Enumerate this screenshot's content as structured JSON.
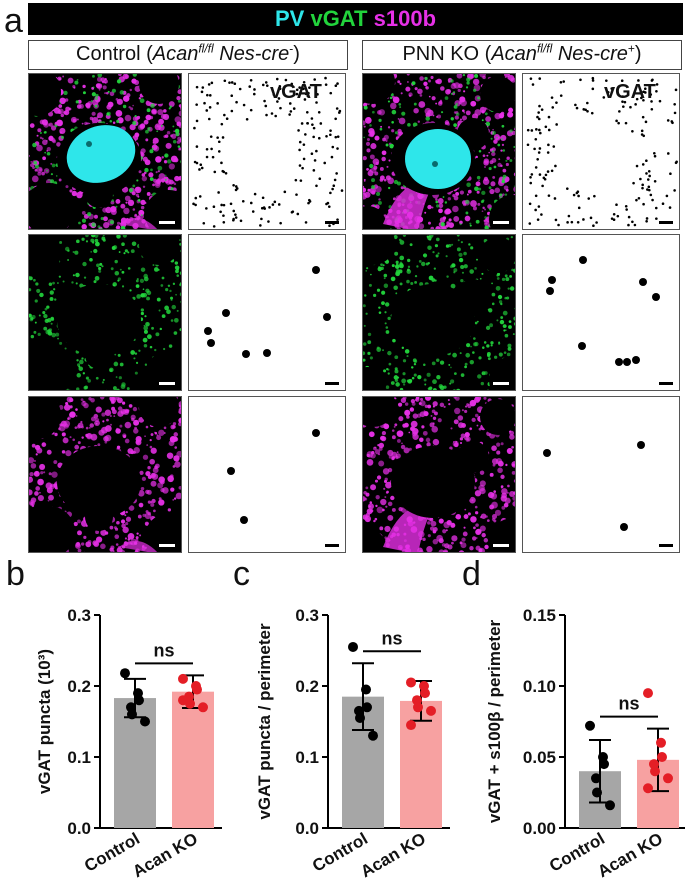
{
  "figure": {
    "panel_a_letter": "a",
    "banner": {
      "pv": "PV",
      "vgat": "vGAT",
      "s100b": "s100b"
    },
    "control_header": {
      "prefix": "Control (",
      "gene": "Acan",
      "gene_sup": "fl/fl",
      "driver": " Nes-cre",
      "driver_sup": "-",
      "suffix": ")"
    },
    "ko_header": {
      "prefix": "PNN KO (",
      "gene": "Acan",
      "gene_sup": "fl/fl",
      "driver": " Nes-cre",
      "driver_sup": "+",
      "suffix": ")"
    },
    "vgat_tile_label": "vGAT",
    "colors": {
      "cyan": "#2ee6ea",
      "green": "#22d43c",
      "magenta": "#e630e6",
      "control_bar": "#a6a6a6",
      "ko_bar": "#f7a1a1",
      "ko_dot": "#e41e26"
    }
  },
  "chart_data": [
    {
      "type": "bar",
      "panel_letter": "b",
      "categories": [
        "Control",
        "Acan KO"
      ],
      "ylabel": "vGAT puncta (10³)",
      "ylim": [
        0,
        0.3
      ],
      "yticks": [
        "0.0",
        "0.1",
        "0.2",
        "0.3"
      ],
      "ytick_values": [
        0,
        0.1,
        0.2,
        0.3
      ],
      "means": [
        0.183,
        0.192
      ],
      "sd": [
        0.027,
        0.023
      ],
      "points": [
        [
          0.218,
          0.19,
          0.18,
          0.17,
          0.16,
          0.15
        ],
        [
          0.21,
          0.2,
          0.195,
          0.185,
          0.175,
          0.17,
          0.18
        ]
      ],
      "significance": "ns"
    },
    {
      "type": "bar",
      "panel_letter": "c",
      "categories": [
        "Control",
        "Acan KO"
      ],
      "ylabel": "vGAT puncta  / perimeter",
      "ylim": [
        0,
        0.3
      ],
      "yticks": [
        "0.0",
        "0.1",
        "0.2",
        "0.3"
      ],
      "ytick_values": [
        0,
        0.1,
        0.2,
        0.3
      ],
      "means": [
        0.185,
        0.179
      ],
      "sd": [
        0.047,
        0.028
      ],
      "points": [
        [
          0.255,
          0.195,
          0.17,
          0.165,
          0.155,
          0.13
        ],
        [
          0.205,
          0.2,
          0.19,
          0.18,
          0.17,
          0.165,
          0.145
        ]
      ],
      "significance": "ns"
    },
    {
      "type": "bar",
      "panel_letter": "d",
      "categories": [
        "Control",
        "Acan KO"
      ],
      "ylabel": "vGAT + s100β / perimeter",
      "ylim": [
        0,
        0.15
      ],
      "yticks": [
        "0.00",
        "0.05",
        "0.10",
        "0.15"
      ],
      "ytick_values": [
        0,
        0.05,
        0.1,
        0.15
      ],
      "means": [
        0.04,
        0.048
      ],
      "sd": [
        0.022,
        0.022
      ],
      "points": [
        [
          0.072,
          0.05,
          0.045,
          0.035,
          0.025,
          0.016
        ],
        [
          0.095,
          0.06,
          0.05,
          0.045,
          0.04,
          0.035,
          0.028
        ]
      ],
      "significance": "ns"
    }
  ]
}
